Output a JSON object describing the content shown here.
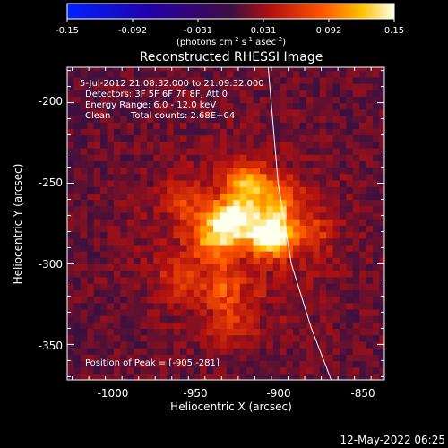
{
  "colorbar": {
    "ticks": [
      "-0.15",
      "-0.092",
      "-0.031",
      "0.031",
      "0.092",
      "0.15"
    ],
    "unit_main": "(photons cm",
    "unit_sup1": "-2",
    "unit_mid": " s",
    "unit_sup2": "-1",
    "unit_end": " asec",
    "unit_sup3": "-2",
    "unit_close": ")",
    "range": [
      -0.15,
      0.15
    ]
  },
  "chart_data": {
    "type": "heatmap",
    "title": "Reconstructed RHESSI Image",
    "xlabel": "Heliocentric X (arcsec)",
    "ylabel": "Heliocentric Y (arcsec)",
    "xlim": [
      -1028,
      -837
    ],
    "ylim": [
      -372,
      -178
    ],
    "xticks": [
      -1000,
      -950,
      -900,
      -850
    ],
    "yticks": [
      -200,
      -250,
      -300,
      -350
    ],
    "peak_position": [
      -905,
      -281
    ],
    "sources": [
      {
        "x": -905,
        "y": -281,
        "intensity": 0.15
      },
      {
        "x": -928,
        "y": -272,
        "intensity": 0.12
      },
      {
        "x": -920,
        "y": -250,
        "intensity": 0.09
      },
      {
        "x": -940,
        "y": -285,
        "intensity": 0.07
      },
      {
        "x": -900,
        "y": -260,
        "intensity": 0.06
      },
      {
        "x": -935,
        "y": -315,
        "intensity": 0.045
      },
      {
        "x": -930,
        "y": -338,
        "intensity": 0.035
      },
      {
        "x": -955,
        "y": -262,
        "intensity": 0.04
      },
      {
        "x": -880,
        "y": -280,
        "intensity": 0.035
      },
      {
        "x": -960,
        "y": -310,
        "intensity": 0.03
      }
    ],
    "limb": [
      [
        -907,
        -178
      ],
      [
        -901,
        -250
      ],
      [
        -893,
        -300
      ],
      [
        -881,
        -340
      ],
      [
        -869,
        -372
      ]
    ],
    "annotations": [
      "5-Jul-2012 21:08:32.000 to 21:09:32.000",
      "Detectors: 3F 5F 6F 7F 8F, Att 0",
      "Energy Range: 6.0 - 12.0 keV",
      "Clean",
      "Total counts: 2.68E+04",
      "Position of Peak = [-905,-281]"
    ]
  },
  "timestamp": "12-May-2022 06:25"
}
